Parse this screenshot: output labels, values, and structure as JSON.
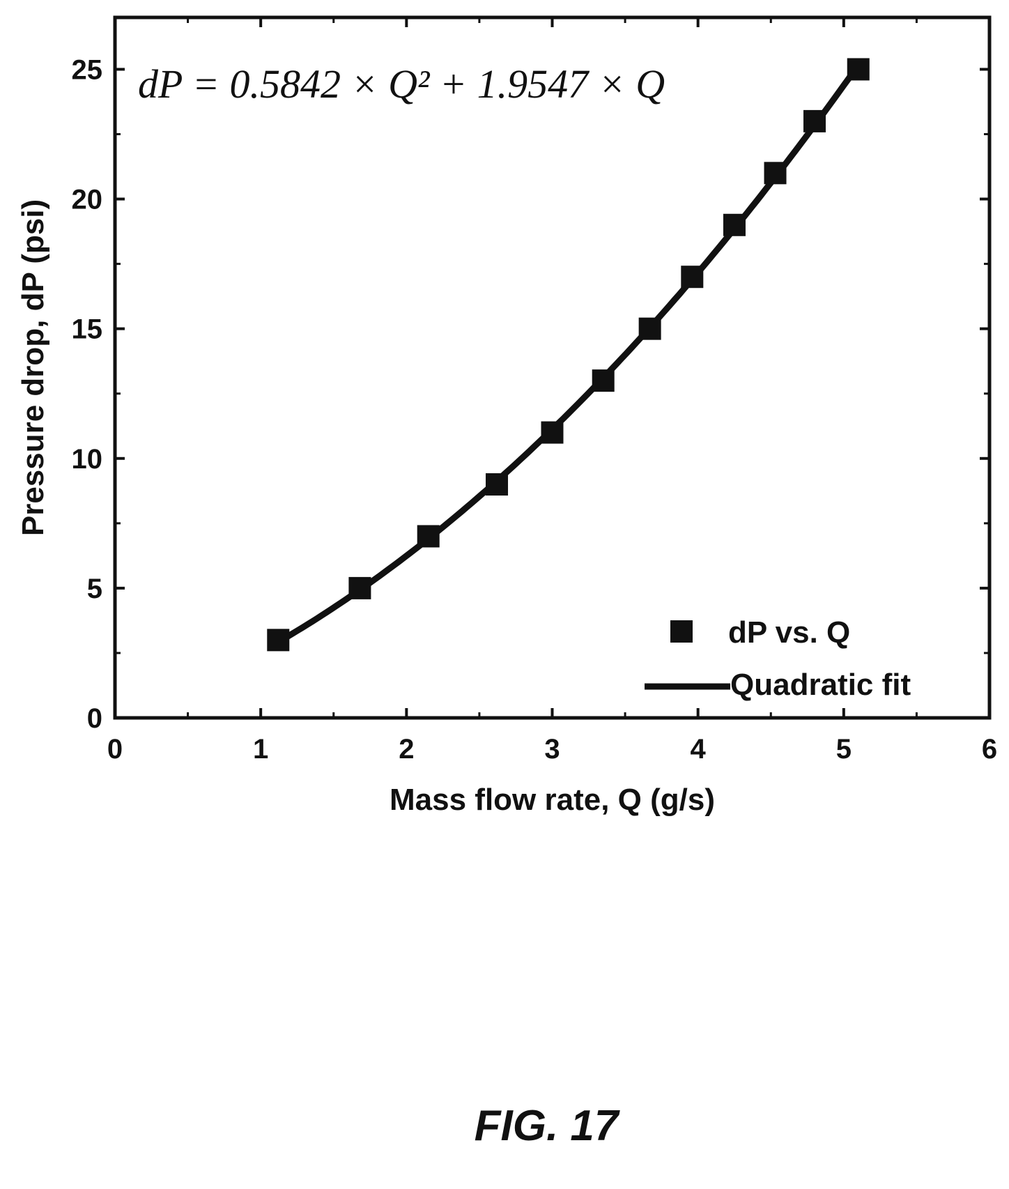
{
  "chart_data": {
    "type": "scatter",
    "xlabel": "Mass flow rate, Q (g/s)",
    "ylabel": "Pressure drop, dP (psi)",
    "xlim": [
      0,
      6
    ],
    "ylim": [
      0,
      27
    ],
    "xticks": [
      "0",
      "1",
      "2",
      "3",
      "4",
      "5",
      "6"
    ],
    "yticks": [
      "0",
      "5",
      "10",
      "15",
      "20",
      "25"
    ],
    "annotation": "dP = 0.5842 × Q² + 1.9547 × Q",
    "fit": {
      "a": 0.5842,
      "b": 1.9547,
      "xmin": 1.12,
      "xmax": 5.1
    },
    "series": [
      {
        "name": "dP vs. Q",
        "marker": "square",
        "x": [
          1.12,
          1.68,
          2.15,
          2.62,
          3.0,
          3.35,
          3.67,
          3.96,
          4.25,
          4.53,
          4.8,
          5.1
        ],
        "y": [
          3,
          5,
          7,
          9,
          11,
          13,
          15,
          17,
          19,
          21,
          23,
          25
        ]
      },
      {
        "name": "Quadratic fit",
        "marker": "line"
      }
    ],
    "legend": "bottom-right",
    "grid": false
  },
  "figure": {
    "caption": "FIG. 17"
  }
}
